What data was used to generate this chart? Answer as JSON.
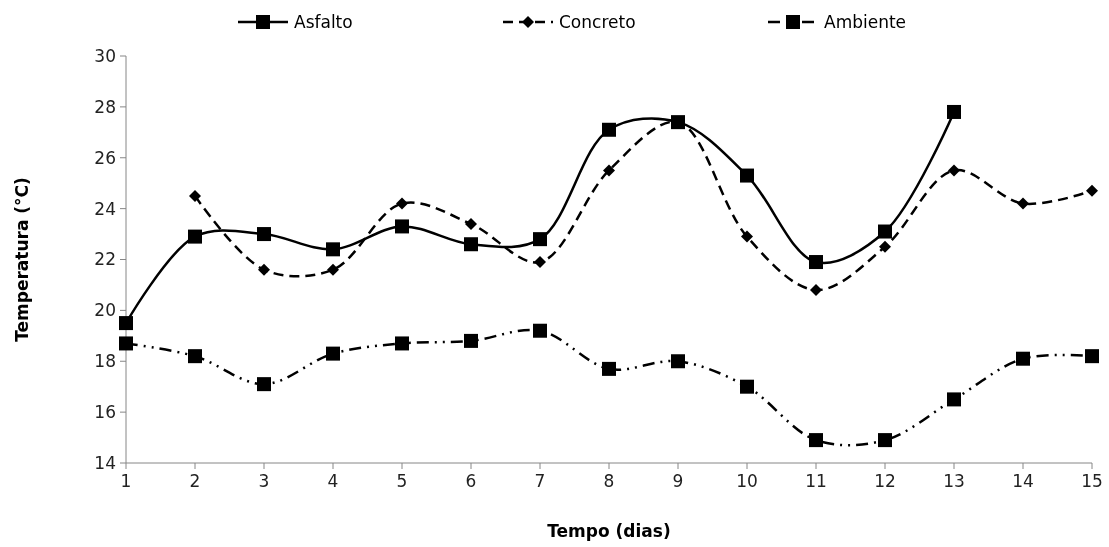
{
  "chart_data": {
    "type": "line",
    "xlabel": "Tempo (dias)",
    "ylabel": "Temperatura (°C)",
    "x": [
      1,
      2,
      3,
      4,
      5,
      6,
      7,
      8,
      9,
      10,
      11,
      12,
      13,
      14,
      15
    ],
    "xlim": [
      1,
      15
    ],
    "xticks": [
      1,
      2,
      3,
      4,
      5,
      6,
      7,
      8,
      9,
      10,
      11,
      12,
      13,
      14,
      15
    ],
    "ylim": [
      14,
      30
    ],
    "yticks": [
      14,
      16,
      18,
      20,
      22,
      24,
      26,
      28,
      30
    ],
    "grid": false,
    "legend": "top",
    "series": [
      {
        "name": "Asfalto",
        "color": "#000000",
        "marker": "square",
        "line_style": "solid",
        "values": [
          19.5,
          22.9,
          23.0,
          22.4,
          23.3,
          22.6,
          22.8,
          27.1,
          27.4,
          25.3,
          21.9,
          23.1,
          27.8,
          null,
          null
        ]
      },
      {
        "name": "Concreto",
        "color": "#000000",
        "marker": "diamond",
        "line_style": "dashed",
        "values": [
          null,
          24.5,
          21.6,
          21.6,
          24.2,
          23.4,
          21.9,
          25.5,
          27.4,
          22.9,
          20.8,
          22.5,
          25.5,
          24.2,
          24.7
        ]
      },
      {
        "name": "Ambiente",
        "color": "#000000",
        "marker": "square",
        "line_style": "dotted",
        "values": [
          18.7,
          18.2,
          17.1,
          18.3,
          18.7,
          18.8,
          19.2,
          17.7,
          18.0,
          17.0,
          14.9,
          14.9,
          16.5,
          18.1,
          18.2
        ]
      }
    ]
  }
}
